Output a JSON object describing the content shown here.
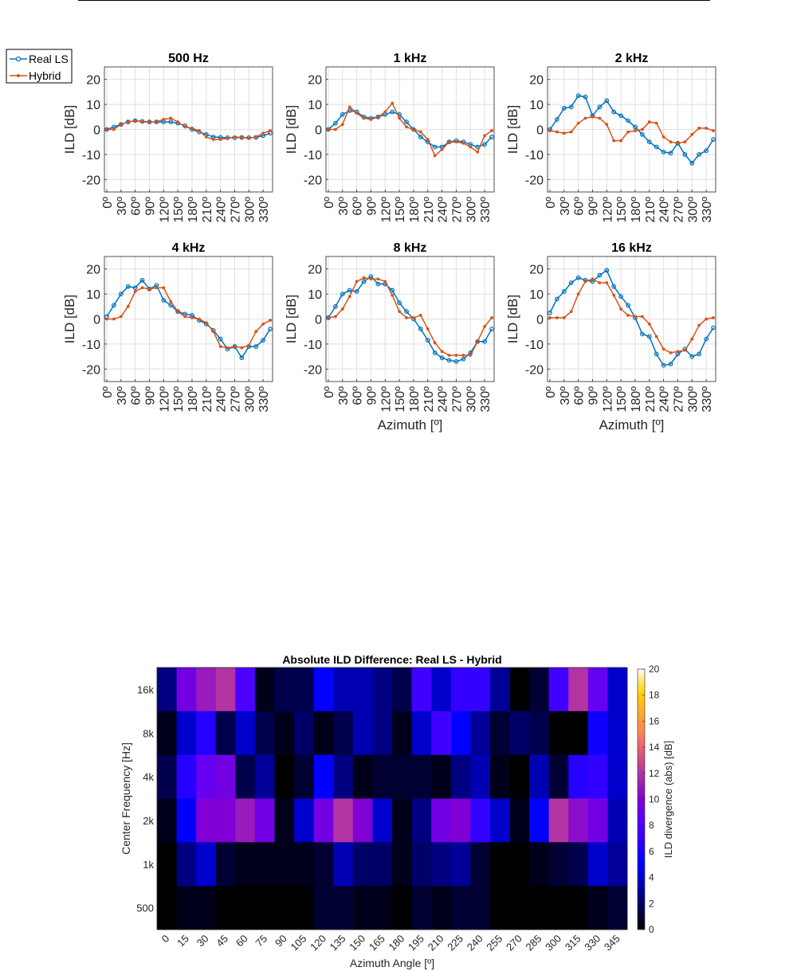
{
  "legend": {
    "entries": [
      {
        "label": "Real LS",
        "color": "#0072BD",
        "marker": "circle"
      },
      {
        "label": "Hybrid",
        "color": "#D95319",
        "marker": "dot"
      }
    ]
  },
  "colorbar": {
    "label": "ILD divergence (abs) [dB]",
    "ticks": [
      "0",
      "2",
      "4",
      "6",
      "8",
      "10",
      "12",
      "14",
      "16",
      "18",
      "20"
    ],
    "range": [
      0,
      20
    ],
    "colormap": "gnuplot2"
  },
  "chart_data": [
    {
      "type": "line",
      "title": "500 Hz",
      "ylabel": "ILD [dB]",
      "xlabel": "",
      "ylim": [
        -25,
        25
      ],
      "yticks": [
        "-20",
        "-10",
        "0",
        "10",
        "20"
      ],
      "xticks": [
        "0º",
        "30º",
        "60º",
        "90º",
        "120º",
        "150º",
        "180º",
        "210º",
        "240º",
        "270º",
        "300º",
        "330º"
      ],
      "x": [
        0,
        15,
        30,
        45,
        60,
        75,
        90,
        105,
        120,
        135,
        150,
        165,
        180,
        195,
        210,
        225,
        240,
        255,
        270,
        285,
        300,
        315,
        330,
        345
      ],
      "series": [
        {
          "name": "Real LS",
          "values": [
            0,
            1,
            2,
            3,
            3.5,
            3.2,
            3,
            3,
            3,
            3,
            2.5,
            1.5,
            0,
            -1,
            -2,
            -3,
            -3.2,
            -3.3,
            -3.3,
            -3.2,
            -3.3,
            -3.2,
            -2.5,
            -1.5
          ]
        },
        {
          "name": "Hybrid",
          "values": [
            0,
            0,
            2,
            3,
            3.5,
            3,
            3,
            3,
            4,
            4.5,
            3,
            1,
            0.5,
            -0.5,
            -3,
            -4,
            -4,
            -3.5,
            -3,
            -3.2,
            -3.5,
            -3,
            -1.5,
            -0.5
          ]
        }
      ]
    },
    {
      "type": "line",
      "title": "1 kHz",
      "ylabel": "ILD [dB]",
      "xlabel": "",
      "ylim": [
        -25,
        25
      ],
      "yticks": [
        "-20",
        "-10",
        "0",
        "10",
        "20"
      ],
      "xticks": [
        "0º",
        "30º",
        "60º",
        "90º",
        "120º",
        "150º",
        "180º",
        "210º",
        "240º",
        "270º",
        "300º",
        "330º"
      ],
      "x": [
        0,
        15,
        30,
        45,
        60,
        75,
        90,
        105,
        120,
        135,
        150,
        165,
        180,
        195,
        210,
        225,
        240,
        255,
        270,
        285,
        300,
        315,
        330,
        345
      ],
      "series": [
        {
          "name": "Real LS",
          "values": [
            0,
            2.5,
            6,
            7.5,
            7,
            5,
            4.5,
            5,
            6,
            7,
            6,
            3,
            0,
            -3,
            -5,
            -7,
            -7,
            -5,
            -4.5,
            -5,
            -6,
            -7,
            -6,
            -3
          ]
        },
        {
          "name": "Hybrid",
          "values": [
            0,
            0,
            2,
            9,
            6.5,
            4.5,
            4,
            5,
            7,
            10.5,
            4.5,
            1,
            0,
            -1,
            -4,
            -10.5,
            -8,
            -5,
            -5,
            -5.5,
            -7,
            -9,
            -2.5,
            -0.5
          ]
        }
      ]
    },
    {
      "type": "line",
      "title": "2 kHz",
      "ylabel": "ILD [dB]",
      "xlabel": "",
      "ylim": [
        -25,
        25
      ],
      "yticks": [
        "-20",
        "-10",
        "0",
        "10",
        "20"
      ],
      "xticks": [
        "0º",
        "30º",
        "60º",
        "90º",
        "120º",
        "150º",
        "180º",
        "210º",
        "240º",
        "270º",
        "300º",
        "330º"
      ],
      "x": [
        0,
        15,
        30,
        45,
        60,
        75,
        90,
        105,
        120,
        135,
        150,
        165,
        180,
        195,
        210,
        225,
        240,
        255,
        270,
        285,
        300,
        315,
        330,
        345
      ],
      "series": [
        {
          "name": "Real LS",
          "values": [
            0,
            4,
            8.5,
            9,
            13.5,
            13,
            5.5,
            9,
            11.5,
            7,
            5.5,
            3.5,
            1,
            -2,
            -5,
            -7,
            -9,
            -9.5,
            -5.5,
            -10,
            -13.5,
            -10,
            -8.5,
            -4
          ]
        },
        {
          "name": "Hybrid",
          "values": [
            -0.5,
            -1,
            -1.5,
            -1,
            2.5,
            4.5,
            5,
            4.5,
            2,
            -4.5,
            -4.5,
            -1,
            -0.5,
            0,
            3,
            2.5,
            -3,
            -5,
            -5.5,
            -5,
            -2,
            0.5,
            0.5,
            -0.5
          ]
        }
      ]
    },
    {
      "type": "line",
      "title": "4 kHz",
      "ylabel": "ILD [dB]",
      "xlabel": "",
      "ylim": [
        -25,
        25
      ],
      "yticks": [
        "-20",
        "-10",
        "0",
        "10",
        "20"
      ],
      "xticks": [
        "0º",
        "30º",
        "60º",
        "90º",
        "120º",
        "150º",
        "180º",
        "210º",
        "240º",
        "270º",
        "300º",
        "330º"
      ],
      "x": [
        0,
        15,
        30,
        45,
        60,
        75,
        90,
        105,
        120,
        135,
        150,
        165,
        180,
        195,
        210,
        225,
        240,
        255,
        270,
        285,
        300,
        315,
        330,
        345
      ],
      "series": [
        {
          "name": "Real LS",
          "values": [
            1,
            5.5,
            10,
            13,
            12.5,
            15.5,
            12,
            13.5,
            7.5,
            5.5,
            3,
            2,
            1.5,
            -0.5,
            -2,
            -4.5,
            -8,
            -12,
            -11,
            -15.5,
            -11,
            -11,
            -8.5,
            -4
          ]
        },
        {
          "name": "Hybrid",
          "values": [
            0,
            0,
            1,
            5,
            11,
            12.5,
            12,
            12.5,
            12.5,
            7,
            3,
            1,
            0.5,
            0,
            -1.5,
            -5,
            -11,
            -11.5,
            -11,
            -11.5,
            -10.5,
            -5,
            -2,
            -0.5
          ]
        }
      ]
    },
    {
      "type": "line",
      "title": "8 kHz",
      "ylabel": "ILD [dB]",
      "xlabel": "Azimuth [º]",
      "ylim": [
        -25,
        25
      ],
      "yticks": [
        "-20",
        "-10",
        "0",
        "10",
        "20"
      ],
      "xticks": [
        "0º",
        "30º",
        "60º",
        "90º",
        "120º",
        "150º",
        "180º",
        "210º",
        "240º",
        "270º",
        "300º",
        "330º"
      ],
      "x": [
        0,
        15,
        30,
        45,
        60,
        75,
        90,
        105,
        120,
        135,
        150,
        165,
        180,
        195,
        210,
        225,
        240,
        255,
        270,
        285,
        300,
        315,
        330,
        345
      ],
      "series": [
        {
          "name": "Real LS",
          "values": [
            0.5,
            5,
            10,
            11.5,
            11,
            15,
            17,
            14,
            14,
            11.5,
            6.5,
            3,
            0,
            -4,
            -8.5,
            -13.5,
            -15.5,
            -16.5,
            -17,
            -16,
            -13.5,
            -9,
            -9,
            -4
          ]
        },
        {
          "name": "Hybrid",
          "values": [
            0.5,
            1,
            4,
            9,
            15,
            16.5,
            16,
            16,
            15,
            9.5,
            3,
            0.5,
            0.5,
            1.5,
            -4,
            -9.5,
            -13,
            -14.5,
            -14.5,
            -14.5,
            -14.5,
            -9,
            -3,
            0.5
          ]
        }
      ]
    },
    {
      "type": "line",
      "title": "16 kHz",
      "ylabel": "ILD [dB]",
      "xlabel": "Azimuth [º]",
      "ylim": [
        -25,
        25
      ],
      "yticks": [
        "-20",
        "-10",
        "0",
        "10",
        "20"
      ],
      "xticks": [
        "0º",
        "30º",
        "60º",
        "90º",
        "120º",
        "150º",
        "180º",
        "210º",
        "240º",
        "270º",
        "300º",
        "330º"
      ],
      "x": [
        0,
        15,
        30,
        45,
        60,
        75,
        90,
        105,
        120,
        135,
        150,
        165,
        180,
        195,
        210,
        225,
        240,
        255,
        270,
        285,
        300,
        315,
        330,
        345
      ],
      "series": [
        {
          "name": "Real LS",
          "values": [
            2.5,
            8,
            11,
            14.5,
            16.5,
            15.5,
            15,
            17.5,
            19.5,
            13,
            9,
            5.5,
            0.5,
            -6,
            -7,
            -14,
            -18.5,
            -18,
            -14,
            -12,
            -15,
            -14,
            -8,
            -3.5
          ]
        },
        {
          "name": "Hybrid",
          "values": [
            0.5,
            0.5,
            0.5,
            3,
            10,
            15,
            16,
            14.5,
            14.5,
            9.5,
            4,
            1.5,
            1,
            1,
            -2,
            -7,
            -12,
            -13.5,
            -13,
            -12.5,
            -8,
            -2.5,
            0,
            0.5
          ]
        }
      ]
    },
    {
      "type": "heatmap",
      "title": "Absolute ILD Difference: Real LS - Hybrid",
      "xlabel": "Azimuth Angle [º]",
      "ylabel": "Center Frequency [Hz]",
      "x": [
        "0",
        "15",
        "30",
        "45",
        "60",
        "75",
        "90",
        "105",
        "120",
        "135",
        "150",
        "165",
        "180",
        "195",
        "210",
        "225",
        "240",
        "255",
        "270",
        "285",
        "300",
        "315",
        "330",
        "345"
      ],
      "y": [
        "16k",
        "8k",
        "4k",
        "2k",
        "1k",
        "500"
      ],
      "clim": [
        0,
        20
      ],
      "values": [
        [
          2.5,
          9.5,
          11,
          12,
          8,
          0.5,
          1.5,
          1.5,
          5,
          3.5,
          3.5,
          2.5,
          1.5,
          7.5,
          4,
          7,
          7,
          3,
          0,
          1,
          7.5,
          12,
          9,
          4
        ],
        [
          0.5,
          4,
          6.5,
          1.5,
          4,
          1.5,
          0.5,
          2,
          0.5,
          1.5,
          3.5,
          2.5,
          0.5,
          4,
          7.5,
          5,
          3,
          1,
          2,
          1.5,
          0,
          0,
          5.5,
          4
        ],
        [
          1.5,
          6.5,
          9,
          9.5,
          1.5,
          3,
          0,
          1,
          5,
          2.5,
          0.5,
          1,
          1,
          1,
          0.5,
          2.5,
          3.5,
          0.5,
          0,
          3.5,
          1,
          6.5,
          7,
          4
        ],
        [
          0.5,
          5,
          10,
          10,
          11,
          9.5,
          0.5,
          4,
          9.5,
          12,
          10,
          4,
          0.5,
          2.5,
          9.5,
          10,
          7,
          4,
          0.5,
          5,
          12,
          10.5,
          9.5,
          3.5
        ],
        [
          0,
          2.5,
          4,
          1,
          0.5,
          0.5,
          0.5,
          0.5,
          1,
          3.5,
          2,
          2,
          0.5,
          2,
          2.5,
          3,
          1,
          0,
          0,
          0.5,
          1,
          1.5,
          4,
          3
        ],
        [
          0,
          0.5,
          0.5,
          0,
          0,
          0,
          0,
          0,
          1,
          1,
          0.5,
          0.5,
          0,
          1,
          0.5,
          1,
          1,
          0,
          0,
          0,
          0,
          0,
          0.5,
          1
        ]
      ]
    }
  ]
}
